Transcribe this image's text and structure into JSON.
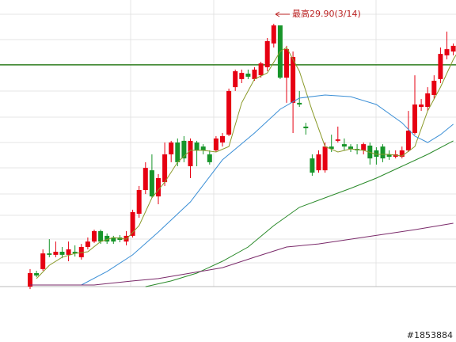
{
  "chart_data": {
    "type": "candlestick",
    "annotation": "最高29.90(3/14)",
    "watermark": "#1853884",
    "ylim": [
      16.5,
      30.9
    ],
    "up_color": "#e60012",
    "down_color": "#17952a",
    "ref_line": {
      "value": 28.17,
      "color": "#2e7d1e"
    },
    "ohlc": [
      [
        18.83,
        19.57,
        18.73,
        19.4
      ],
      [
        19.4,
        19.5,
        19.23,
        19.3
      ],
      [
        19.57,
        20.4,
        19.5,
        20.23
      ],
      [
        20.23,
        20.83,
        20.07,
        20.17
      ],
      [
        20.17,
        20.73,
        20.07,
        20.3
      ],
      [
        20.3,
        20.5,
        20.03,
        20.17
      ],
      [
        20.17,
        20.73,
        19.9,
        20.4
      ],
      [
        20.3,
        20.57,
        20.1,
        20.23
      ],
      [
        20.07,
        20.63,
        19.97,
        20.5
      ],
      [
        20.5,
        20.9,
        20.4,
        20.73
      ],
      [
        20.73,
        21.23,
        20.67,
        21.17
      ],
      [
        21.17,
        21.23,
        20.63,
        20.73
      ],
      [
        20.97,
        21.07,
        20.63,
        20.73
      ],
      [
        20.9,
        20.97,
        20.63,
        20.73
      ],
      [
        20.9,
        21.0,
        20.7,
        20.8
      ],
      [
        20.73,
        21.17,
        20.57,
        20.97
      ],
      [
        20.97,
        22.07,
        20.9,
        21.97
      ],
      [
        21.9,
        23.07,
        21.73,
        22.9
      ],
      [
        22.9,
        24.07,
        22.73,
        23.83
      ],
      [
        23.73,
        24.4,
        22.57,
        22.63
      ],
      [
        22.63,
        23.57,
        22.3,
        23.4
      ],
      [
        23.23,
        24.9,
        23.07,
        24.4
      ],
      [
        24.4,
        24.97,
        24.07,
        24.9
      ],
      [
        24.9,
        25.07,
        23.9,
        24.07
      ],
      [
        24.97,
        25.17,
        24.07,
        24.23
      ],
      [
        23.9,
        25.07,
        23.4,
        24.97
      ],
      [
        24.9,
        24.97,
        23.9,
        24.57
      ],
      [
        24.73,
        24.83,
        24.4,
        24.57
      ],
      [
        24.4,
        24.57,
        23.97,
        24.07
      ],
      [
        24.57,
        25.17,
        24.5,
        25.07
      ],
      [
        24.9,
        25.3,
        24.73,
        25.17
      ],
      [
        25.23,
        27.17,
        25.17,
        27.07
      ],
      [
        27.23,
        27.97,
        27.07,
        27.9
      ],
      [
        27.57,
        27.97,
        27.4,
        27.83
      ],
      [
        27.8,
        27.97,
        27.57,
        27.67
      ],
      [
        27.57,
        28.07,
        27.5,
        27.97
      ],
      [
        27.73,
        28.3,
        27.63,
        28.23
      ],
      [
        28.07,
        29.3,
        27.9,
        29.17
      ],
      [
        29.07,
        29.9,
        28.9,
        29.83
      ],
      [
        29.83,
        29.8,
        27.57,
        27.63
      ],
      [
        27.63,
        28.97,
        26.57,
        28.83
      ],
      [
        26.57,
        28.73,
        25.3,
        28.5
      ],
      [
        26.57,
        27.07,
        26.4,
        26.5
      ],
      [
        25.57,
        25.73,
        25.23,
        25.5
      ],
      [
        24.23,
        24.4,
        23.5,
        23.63
      ],
      [
        23.73,
        24.57,
        23.63,
        24.4
      ],
      [
        23.73,
        24.9,
        23.63,
        24.73
      ],
      [
        24.73,
        25.23,
        24.5,
        24.63
      ],
      [
        24.97,
        25.57,
        24.9,
        25.03
      ],
      [
        24.83,
        25.07,
        24.57,
        24.73
      ],
      [
        24.73,
        24.83,
        24.5,
        24.63
      ],
      [
        24.63,
        24.83,
        24.4,
        24.57
      ],
      [
        24.57,
        24.9,
        24.4,
        24.83
      ],
      [
        24.77,
        24.9,
        23.97,
        24.23
      ],
      [
        24.57,
        24.7,
        23.97,
        24.3
      ],
      [
        24.73,
        24.83,
        24.07,
        24.23
      ],
      [
        24.4,
        24.57,
        24.17,
        24.3
      ],
      [
        24.3,
        24.57,
        24.23,
        24.4
      ],
      [
        24.3,
        24.73,
        24.23,
        24.57
      ],
      [
        24.57,
        26.23,
        24.5,
        25.4
      ],
      [
        25.3,
        27.73,
        25.23,
        26.5
      ],
      [
        26.4,
        26.73,
        26.23,
        26.5
      ],
      [
        26.4,
        27.23,
        26.23,
        26.97
      ],
      [
        26.9,
        27.73,
        26.73,
        27.5
      ],
      [
        27.57,
        28.9,
        27.4,
        28.63
      ],
      [
        28.57,
        29.57,
        28.4,
        28.83
      ],
      [
        28.73,
        29.07,
        28.57,
        28.97
      ]
    ],
    "lines": [
      {
        "color": "#8a9a2a",
        "x": [
          1,
          3,
          5,
          7,
          9,
          11,
          13,
          15,
          17,
          19,
          21,
          23,
          25,
          27,
          29,
          31,
          33,
          35,
          37,
          39,
          40,
          42,
          44,
          46,
          48,
          50,
          52,
          54,
          56,
          58,
          60,
          62,
          64,
          66,
          67
        ],
        "values": [
          19.17,
          19.73,
          20.07,
          20.23,
          20.3,
          20.73,
          20.9,
          20.83,
          21.4,
          22.57,
          23.23,
          24.07,
          24.57,
          24.57,
          24.5,
          24.73,
          26.57,
          27.57,
          27.83,
          28.73,
          28.9,
          27.9,
          26.23,
          24.73,
          24.5,
          24.63,
          24.57,
          24.4,
          24.4,
          24.33,
          24.73,
          26.23,
          27.23,
          28.4,
          28.83
        ]
      },
      {
        "color": "#3b8fd6",
        "x": [
          8,
          12,
          16,
          20,
          25,
          30,
          35,
          39,
          42,
          46,
          50,
          54,
          58,
          60,
          62,
          64,
          66
        ],
        "values": [
          18.9,
          19.47,
          20.17,
          21.13,
          22.4,
          24.17,
          25.3,
          26.3,
          26.77,
          26.9,
          26.83,
          26.5,
          25.73,
          25.17,
          24.9,
          25.23,
          25.67
        ]
      },
      {
        "color": "#2a8a2a",
        "x": [
          18,
          22,
          26,
          30,
          34,
          38,
          42,
          46,
          50,
          54,
          58,
          62,
          66
        ],
        "values": [
          18.83,
          19.07,
          19.4,
          19.9,
          20.5,
          21.4,
          22.17,
          22.57,
          22.97,
          23.4,
          23.9,
          24.4,
          24.97
        ]
      },
      {
        "color": "#7a2a6a",
        "x": [
          0,
          10,
          16,
          20,
          25,
          30,
          35,
          40,
          45,
          50,
          55,
          60,
          66
        ],
        "values": [
          18.9,
          18.9,
          19.07,
          19.17,
          19.4,
          19.63,
          20.07,
          20.5,
          20.63,
          20.83,
          21.03,
          21.23,
          21.5
        ]
      }
    ]
  }
}
